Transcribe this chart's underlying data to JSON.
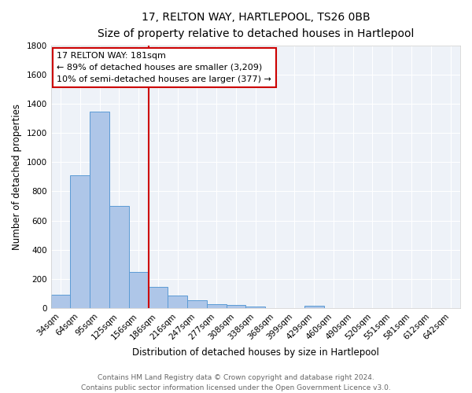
{
  "title": "17, RELTON WAY, HARTLEPOOL, TS26 0BB",
  "subtitle": "Size of property relative to detached houses in Hartlepool",
  "xlabel": "Distribution of detached houses by size in Hartlepool",
  "ylabel": "Number of detached properties",
  "bin_labels": [
    "34sqm",
    "64sqm",
    "95sqm",
    "125sqm",
    "156sqm",
    "186sqm",
    "216sqm",
    "247sqm",
    "277sqm",
    "308sqm",
    "338sqm",
    "368sqm",
    "399sqm",
    "429sqm",
    "460sqm",
    "490sqm",
    "520sqm",
    "551sqm",
    "581sqm",
    "612sqm",
    "642sqm"
  ],
  "bar_values": [
    90,
    910,
    1345,
    700,
    250,
    145,
    85,
    55,
    25,
    20,
    10,
    0,
    0,
    15,
    0,
    0,
    0,
    0,
    0,
    0,
    0
  ],
  "bar_color": "#aec6e8",
  "bar_edge_color": "#5b9bd5",
  "vline_label_idx": 5,
  "vline_color": "#cc0000",
  "ylim": [
    0,
    1800
  ],
  "yticks": [
    0,
    200,
    400,
    600,
    800,
    1000,
    1200,
    1400,
    1600,
    1800
  ],
  "annotation_title": "17 RELTON WAY: 181sqm",
  "annotation_line1": "← 89% of detached houses are smaller (3,209)",
  "annotation_line2": "10% of semi-detached houses are larger (377) →",
  "annotation_box_color": "#ffffff",
  "annotation_box_edge": "#cc0000",
  "footer_line1": "Contains HM Land Registry data © Crown copyright and database right 2024.",
  "footer_line2": "Contains public sector information licensed under the Open Government Licence v3.0.",
  "bg_color": "#eef2f8",
  "grid_color": "#ffffff",
  "fig_bg_color": "#ffffff",
  "title_fontsize": 10,
  "subtitle_fontsize": 9,
  "axis_label_fontsize": 8.5,
  "tick_fontsize": 7.5,
  "annotation_fontsize": 8,
  "footer_fontsize": 6.5
}
